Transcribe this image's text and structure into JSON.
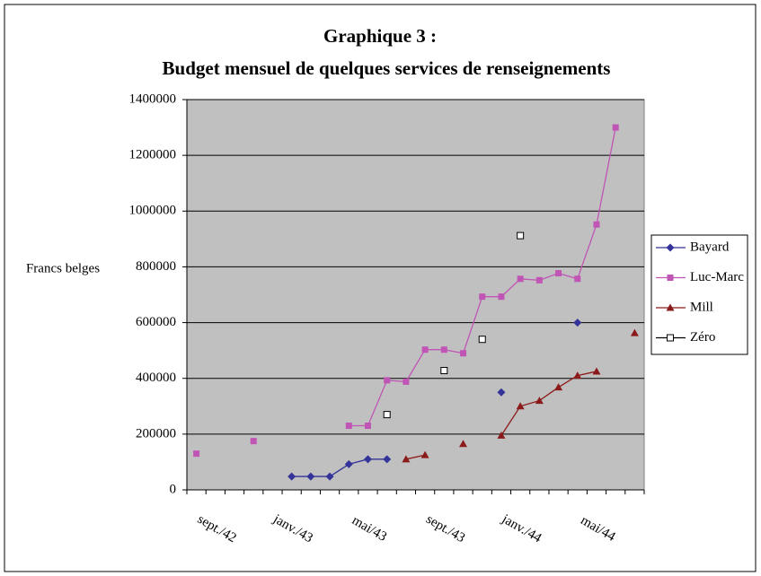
{
  "chart_data": {
    "type": "line",
    "title": "Graphique 3 :",
    "subtitle": "Budget mensuel de quelques services de renseignements",
    "ylabel": "Francs belges",
    "categories": [
      null,
      null,
      "sept./42",
      null,
      null,
      null,
      "janv./43",
      null,
      null,
      null,
      "mai/43",
      null,
      null,
      null,
      "sept./43",
      null,
      null,
      null,
      "janv./44",
      null,
      null,
      null,
      "mai/44",
      null
    ],
    "ylim": [
      0,
      1400000
    ],
    "yticks": [
      0,
      200000,
      400000,
      600000,
      800000,
      1000000,
      1200000,
      1400000
    ],
    "grid": true,
    "legend": "right",
    "series": [
      {
        "name": "Bayard",
        "color": "#333399",
        "marker": "diamond",
        "values": [
          null,
          null,
          null,
          null,
          null,
          48000,
          48000,
          48000,
          92000,
          110000,
          110000,
          null,
          null,
          null,
          null,
          null,
          350000,
          null,
          null,
          null,
          600000,
          null,
          null,
          null
        ]
      },
      {
        "name": "Luc-Marc",
        "color": "#c055b5",
        "marker": "square",
        "values": [
          130000,
          null,
          null,
          175000,
          null,
          null,
          null,
          null,
          230000,
          230000,
          393000,
          388000,
          503000,
          503000,
          490000,
          693000,
          693000,
          757000,
          752000,
          777000,
          757000,
          952000,
          1300000,
          null
        ]
      },
      {
        "name": "Mill",
        "color": "#8b1a1a",
        "marker": "triangle",
        "values": [
          null,
          null,
          null,
          null,
          null,
          null,
          null,
          null,
          null,
          null,
          null,
          110000,
          125000,
          null,
          165000,
          null,
          195000,
          300000,
          320000,
          368000,
          410000,
          425000,
          null,
          563000
        ]
      },
      {
        "name": "Zéro",
        "color": "#000000",
        "marker": "open-square",
        "values": [
          null,
          null,
          null,
          null,
          null,
          null,
          null,
          null,
          null,
          null,
          270000,
          null,
          null,
          428000,
          null,
          540000,
          null,
          912000,
          null,
          null,
          null,
          null,
          null,
          null
        ]
      }
    ]
  }
}
